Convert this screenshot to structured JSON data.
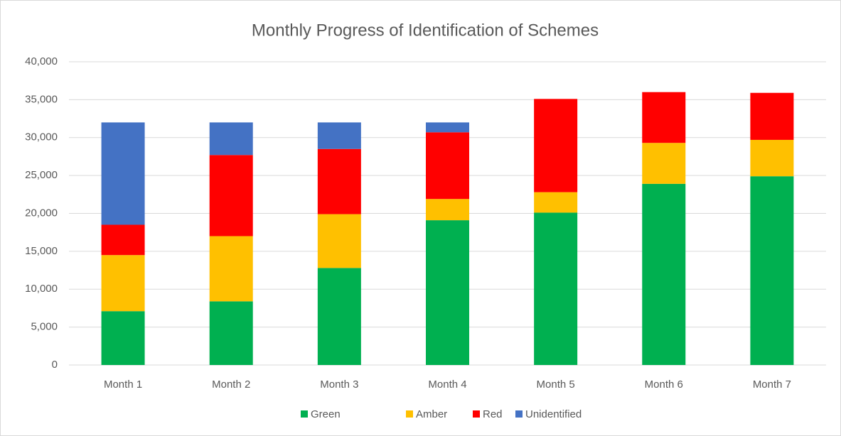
{
  "chart_data": {
    "type": "stacked_bar",
    "title": "Monthly Progress of Identification of Schemes",
    "categories": [
      "Month 1",
      "Month 2",
      "Month 3",
      "Month 4",
      "Month 5",
      "Month 6",
      "Month 7"
    ],
    "series": [
      {
        "name": "Green",
        "color": "#00b050",
        "values": [
          7100,
          8400,
          12800,
          19100,
          20100,
          23900,
          24900
        ]
      },
      {
        "name": "Amber",
        "color": "#ffc000",
        "values": [
          7400,
          8600,
          7100,
          2800,
          2700,
          5400,
          4800
        ]
      },
      {
        "name": "Red",
        "color": "#ff0000",
        "values": [
          4000,
          10700,
          8600,
          8800,
          12300,
          6700,
          6200
        ]
      },
      {
        "name": "Unidentified",
        "color": "#4472c4",
        "values": [
          13500,
          4300,
          3500,
          1300,
          0,
          0,
          0
        ]
      }
    ],
    "ylim": [
      0,
      40000
    ],
    "yticks": [
      0,
      {
        "value": 5000,
        "label": "5,000"
      },
      {
        "value": 10000,
        "label": "10,000"
      },
      {
        "value": 15000,
        "label": "15,000"
      },
      {
        "value": 20000,
        "label": "20,000"
      },
      {
        "value": 25000,
        "label": "25,000"
      },
      {
        "value": 30000,
        "label": "30,000"
      },
      {
        "value": 35000,
        "label": "35,000"
      },
      {
        "value": 40000,
        "label": "40,000"
      }
    ],
    "grid": true,
    "legend": "bottom"
  }
}
